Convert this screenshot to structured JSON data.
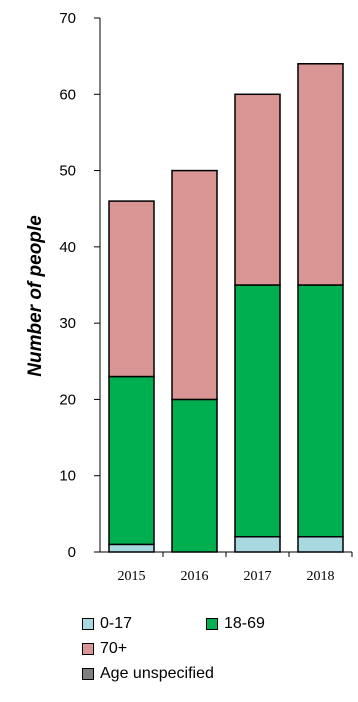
{
  "chart_data": {
    "type": "bar",
    "stacked": true,
    "categories": [
      "2015",
      "2016",
      "2017",
      "2018"
    ],
    "series": [
      {
        "name": "0-17",
        "values": [
          1,
          0,
          2,
          2
        ],
        "color": "#a8d8e0"
      },
      {
        "name": "18-69",
        "values": [
          22,
          20,
          33,
          33
        ],
        "color": "#00b050"
      },
      {
        "name": "70+",
        "values": [
          23,
          30,
          25,
          29
        ],
        "color": "#da9694"
      },
      {
        "name": "Age unspecified",
        "values": [
          0,
          0,
          0,
          0
        ],
        "color": "#7f7f7f"
      }
    ],
    "ylabel": "Number of people",
    "ylim": [
      0,
      70
    ],
    "yticks": [
      0,
      10,
      20,
      30,
      40,
      50,
      60,
      70
    ],
    "legend_position": "bottom",
    "grid": false
  }
}
